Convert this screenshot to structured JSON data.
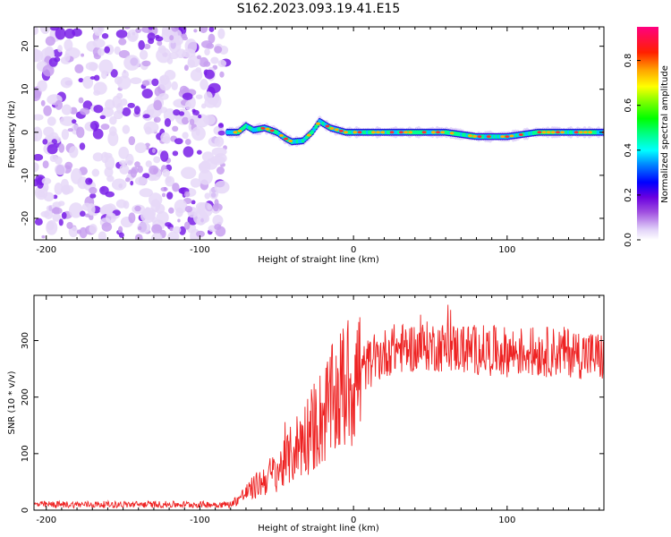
{
  "figure_title": "S162.2023.093.19.41.E15",
  "chart_data": [
    {
      "type": "heatmap",
      "name": "spectrogram",
      "xlabel": "Height of straight line (km)",
      "ylabel": "Frequency (Hz)",
      "xlim": [
        -208,
        163
      ],
      "ylim": [
        -25,
        24.5
      ],
      "xticks": [
        -200,
        -100,
        0,
        100
      ],
      "yticks": [
        -20,
        -10,
        0,
        10,
        20
      ],
      "noise_region_x": [
        -208,
        -83
      ],
      "signal_track": [
        {
          "x": -83,
          "y": 0
        },
        {
          "x": -75,
          "y": 0
        },
        {
          "x": -70,
          "y": 1.5
        },
        {
          "x": -65,
          "y": 0.5
        },
        {
          "x": -58,
          "y": 1.0
        },
        {
          "x": -50,
          "y": 0
        },
        {
          "x": -44,
          "y": -1.5
        },
        {
          "x": -40,
          "y": -2.2
        },
        {
          "x": -33,
          "y": -2.0
        },
        {
          "x": -27,
          "y": 0
        },
        {
          "x": -22,
          "y": 2.5
        },
        {
          "x": -15,
          "y": 1.0
        },
        {
          "x": -5,
          "y": 0
        },
        {
          "x": 20,
          "y": 0
        },
        {
          "x": 60,
          "y": 0
        },
        {
          "x": 80,
          "y": -1.0
        },
        {
          "x": 100,
          "y": -1.0
        },
        {
          "x": 120,
          "y": 0
        },
        {
          "x": 163,
          "y": 0
        }
      ],
      "colorbar": {
        "label": "Normalized spectral amplitude",
        "range": [
          0,
          0.95
        ],
        "ticks": [
          "0.0",
          "0.2",
          "0.4",
          "0.6",
          "0.8"
        ],
        "colors": [
          "#ffffff",
          "#e0d0f8",
          "#a050e0",
          "#6a00e0",
          "#0000ff",
          "#0080ff",
          "#00ffff",
          "#00ff80",
          "#00ff00",
          "#80ff00",
          "#ffff00",
          "#ffa000",
          "#ff2000",
          "#ff0080"
        ]
      }
    },
    {
      "type": "line",
      "name": "snr",
      "xlabel": "Height of straight line (km)",
      "ylabel": "SNR (10 * v/v)",
      "xlim": [
        -208,
        163
      ],
      "ylim": [
        0,
        380
      ],
      "xticks": [
        -200,
        -100,
        0,
        100
      ],
      "yticks": [
        0,
        100,
        200,
        300
      ],
      "color": "#ee2222",
      "trend": [
        {
          "x": -208,
          "y": 10
        },
        {
          "x": -80,
          "y": 10
        },
        {
          "x": -75,
          "y": 20
        },
        {
          "x": -60,
          "y": 50
        },
        {
          "x": -45,
          "y": 80
        },
        {
          "x": -35,
          "y": 120
        },
        {
          "x": -25,
          "y": 150
        },
        {
          "x": -15,
          "y": 185
        },
        {
          "x": -5,
          "y": 220
        },
        {
          "x": 10,
          "y": 260
        },
        {
          "x": 25,
          "y": 285
        },
        {
          "x": 50,
          "y": 290
        },
        {
          "x": 100,
          "y": 280
        },
        {
          "x": 140,
          "y": 280
        },
        {
          "x": 163,
          "y": 270
        }
      ]
    }
  ]
}
